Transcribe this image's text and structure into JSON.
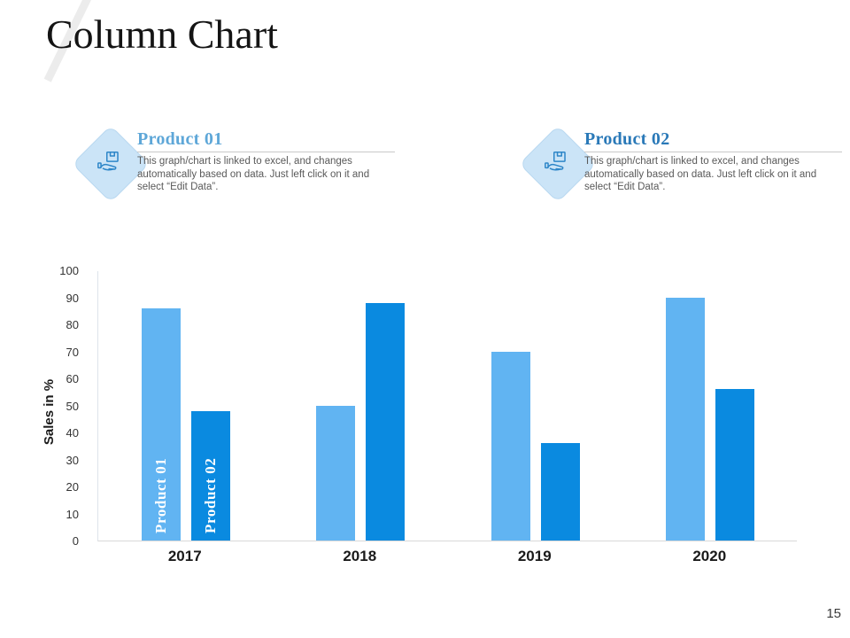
{
  "title": "Column Chart",
  "page_number": "15",
  "callouts": [
    {
      "icon": "box-in-hand-icon",
      "heading": "Product 01",
      "heading_color": "#5ea7d8",
      "body": "This graph/chart is linked to excel, and changes automatically based on data. Just left click on it and select “Edit Data”."
    },
    {
      "icon": "box-in-hand-icon",
      "heading": "Product 02",
      "heading_color": "#2a79b8",
      "body": "This graph/chart is linked to excel, and changes automatically based on data. Just left click on it and select “Edit Data”."
    }
  ],
  "chart_data": {
    "type": "bar",
    "title": "",
    "categories": [
      "2017",
      "2018",
      "2019",
      "2020"
    ],
    "series": [
      {
        "name": "Product 01",
        "color": "#61b4f2",
        "values": [
          86,
          50,
          70,
          90
        ]
      },
      {
        "name": "Product 02",
        "color": "#0a8ae0",
        "values": [
          48,
          88,
          36,
          56
        ]
      }
    ],
    "xlabel": "",
    "ylabel": "Sales in %",
    "ylim": [
      0,
      100
    ],
    "ytick_step": 10,
    "grid": false,
    "legend_position": "none",
    "bar_labels_on_first_category": true
  },
  "colors": {
    "bar_light": "#61b4f2",
    "bar_dark": "#0a8ae0",
    "diamond_fill": "#cbe4f7",
    "icon_stroke": "#2e86c8",
    "axis_line": "#d9d9d9"
  }
}
